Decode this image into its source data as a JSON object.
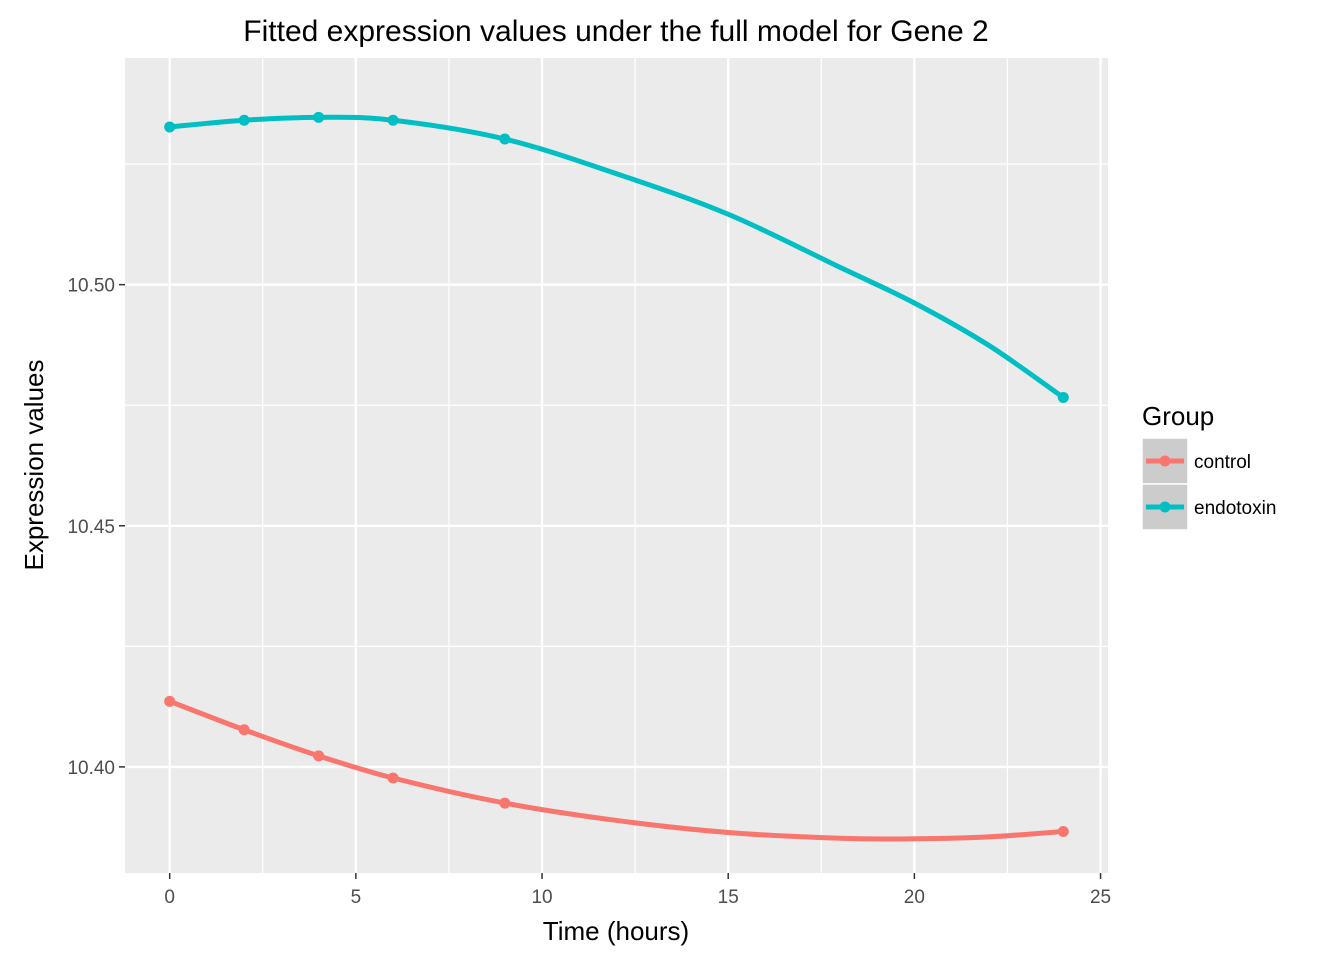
{
  "chart_data": {
    "type": "line",
    "title": "Fitted expression values under the full model for Gene 2",
    "xlabel": "Time (hours)",
    "ylabel": "Expression values",
    "xlim": [
      -1.2,
      25.2
    ],
    "ylim": [
      10.378,
      10.547
    ],
    "x_ticks": [
      0,
      5,
      10,
      15,
      20,
      25
    ],
    "x_tick_labels": [
      "0",
      "5",
      "10",
      "15",
      "20",
      "25"
    ],
    "y_ticks": [
      10.4,
      10.45,
      10.5
    ],
    "y_tick_labels": [
      "10.40",
      "10.45",
      "10.50"
    ],
    "grid": true,
    "legend": {
      "title": "Group",
      "position": "right"
    },
    "series": [
      {
        "name": "control",
        "color": "#F8766D",
        "points": {
          "x": [
            0,
            2,
            4,
            6,
            9,
            24
          ],
          "y": [
            10.4136,
            10.4077,
            10.4023,
            10.3977,
            10.3925,
            10.3866
          ]
        },
        "curve": {
          "x": [
            0,
            2,
            4,
            6,
            9,
            12,
            15,
            18,
            20,
            22,
            24
          ],
          "y": [
            10.4136,
            10.4077,
            10.4023,
            10.3977,
            10.3925,
            10.3889,
            10.3864,
            10.3852,
            10.3851,
            10.3855,
            10.3866
          ]
        }
      },
      {
        "name": "endotoxin",
        "color": "#00BFC4",
        "points": {
          "x": [
            0,
            2,
            4,
            6,
            9,
            24
          ],
          "y": [
            10.5327,
            10.5341,
            10.5347,
            10.5341,
            10.5302,
            10.4766
          ]
        },
        "curve": {
          "x": [
            0,
            2,
            4,
            6,
            9,
            12,
            15,
            18,
            20,
            22,
            24
          ],
          "y": [
            10.5327,
            10.5341,
            10.5347,
            10.5341,
            10.5302,
            10.523,
            10.5146,
            10.5036,
            10.4962,
            10.4874,
            10.4766
          ]
        }
      }
    ]
  }
}
